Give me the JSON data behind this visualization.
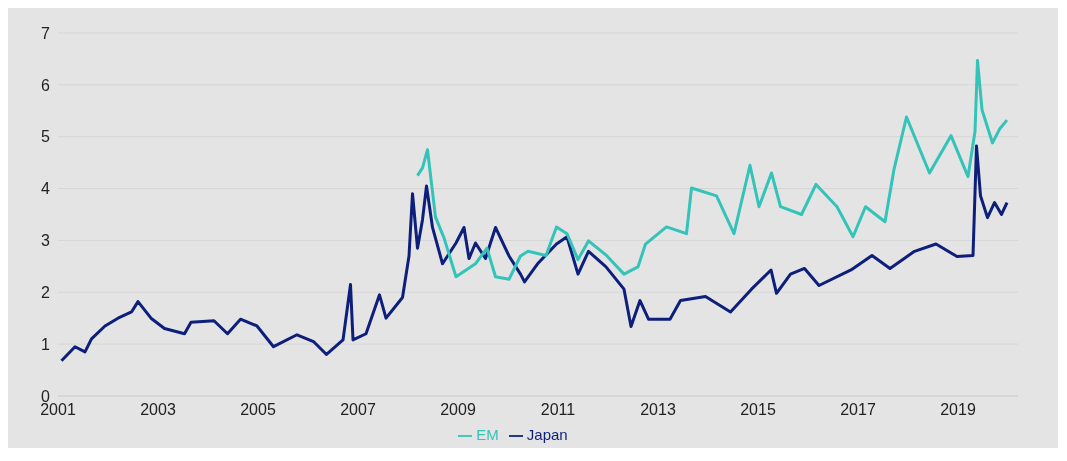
{
  "chart_data": {
    "type": "line",
    "series": [
      {
        "name": "Japan",
        "color": "#0d1f7a",
        "x": [
          2001.07,
          2001.34,
          2001.54,
          2001.67,
          2001.94,
          2002.2,
          2002.47,
          2002.6,
          2002.86,
          2003.13,
          2003.53,
          2003.66,
          2004.12,
          2004.39,
          2004.65,
          2004.98,
          2005.31,
          2005.78,
          2006.11,
          2006.37,
          2006.7,
          2006.85,
          2006.9,
          2007.16,
          2007.43,
          2007.56,
          2007.89,
          2008.02,
          2008.09,
          2008.19,
          2008.29,
          2008.37,
          2008.49,
          2008.69,
          2008.96,
          2009.12,
          2009.22,
          2009.35,
          2009.55,
          2009.75,
          2010.02,
          2010.25,
          2010.33,
          2010.61,
          2010.97,
          2011.18,
          2011.4,
          2011.61,
          2011.96,
          2012.32,
          2012.46,
          2012.64,
          2012.81,
          2013.24,
          2013.45,
          2013.95,
          2014.45,
          2014.87,
          2015.26,
          2015.37,
          2015.65,
          2015.93,
          2016.22,
          2016.86,
          2017.28,
          2017.64,
          2018.13,
          2018.56,
          2018.98,
          2019.3,
          2019.37,
          2019.45,
          2019.59,
          2019.73,
          2019.87,
          2019.98
        ],
        "values": [
          0.68,
          0.95,
          0.85,
          1.1,
          1.35,
          1.5,
          1.62,
          1.82,
          1.5,
          1.3,
          1.2,
          1.42,
          1.45,
          1.2,
          1.48,
          1.35,
          0.95,
          1.18,
          1.05,
          0.8,
          1.08,
          2.15,
          1.08,
          1.2,
          1.95,
          1.5,
          1.9,
          2.7,
          3.9,
          2.85,
          3.4,
          4.05,
          3.25,
          2.55,
          2.95,
          3.25,
          2.65,
          2.95,
          2.65,
          3.25,
          2.7,
          2.35,
          2.2,
          2.57,
          2.93,
          3.07,
          2.35,
          2.79,
          2.49,
          2.06,
          1.34,
          1.84,
          1.48,
          1.48,
          1.84,
          1.92,
          1.62,
          2.06,
          2.43,
          1.98,
          2.35,
          2.46,
          2.13,
          2.43,
          2.71,
          2.46,
          2.79,
          2.93,
          2.69,
          2.71,
          4.82,
          3.86,
          3.44,
          3.73,
          3.5,
          3.73
        ]
      },
      {
        "name": "EM",
        "color": "#33c3b8",
        "x": [
          2008.19,
          2008.29,
          2008.39,
          2008.55,
          2008.72,
          2008.96,
          2009.35,
          2009.58,
          2009.75,
          2010.02,
          2010.25,
          2010.4,
          2010.76,
          2010.97,
          2011.18,
          2011.4,
          2011.61,
          2011.97,
          2012.32,
          2012.6,
          2012.75,
          2013.17,
          2013.57,
          2013.67,
          2014.17,
          2014.52,
          2014.84,
          2015.02,
          2015.27,
          2015.45,
          2015.87,
          2016.16,
          2016.58,
          2016.9,
          2017.15,
          2017.54,
          2017.72,
          2017.97,
          2018.43,
          2018.86,
          2019.2,
          2019.34,
          2019.39,
          2019.48,
          2019.69,
          2019.84,
          2019.98
        ],
        "values": [
          4.25,
          4.4,
          4.75,
          3.45,
          3.05,
          2.3,
          2.55,
          2.85,
          2.3,
          2.25,
          2.7,
          2.79,
          2.71,
          3.26,
          3.13,
          2.63,
          2.99,
          2.71,
          2.35,
          2.49,
          2.93,
          3.26,
          3.13,
          4.01,
          3.86,
          3.13,
          4.45,
          3.65,
          4.3,
          3.65,
          3.5,
          4.08,
          3.65,
          3.07,
          3.65,
          3.36,
          4.37,
          5.38,
          4.3,
          5.02,
          4.23,
          5.1,
          6.47,
          5.52,
          4.88,
          5.16,
          5.32
        ]
      }
    ],
    "xlim": [
      2001,
      2020.2
    ],
    "xticks": [
      2001,
      2003,
      2005,
      2007,
      2009,
      2011,
      2013,
      2015,
      2017,
      2019
    ],
    "ylim": [
      0,
      7
    ],
    "yticks": [
      0,
      1,
      2,
      3,
      4,
      5,
      6,
      7
    ],
    "grid": "y",
    "legend": "bottom",
    "marker": "none",
    "line_style": "solid"
  }
}
